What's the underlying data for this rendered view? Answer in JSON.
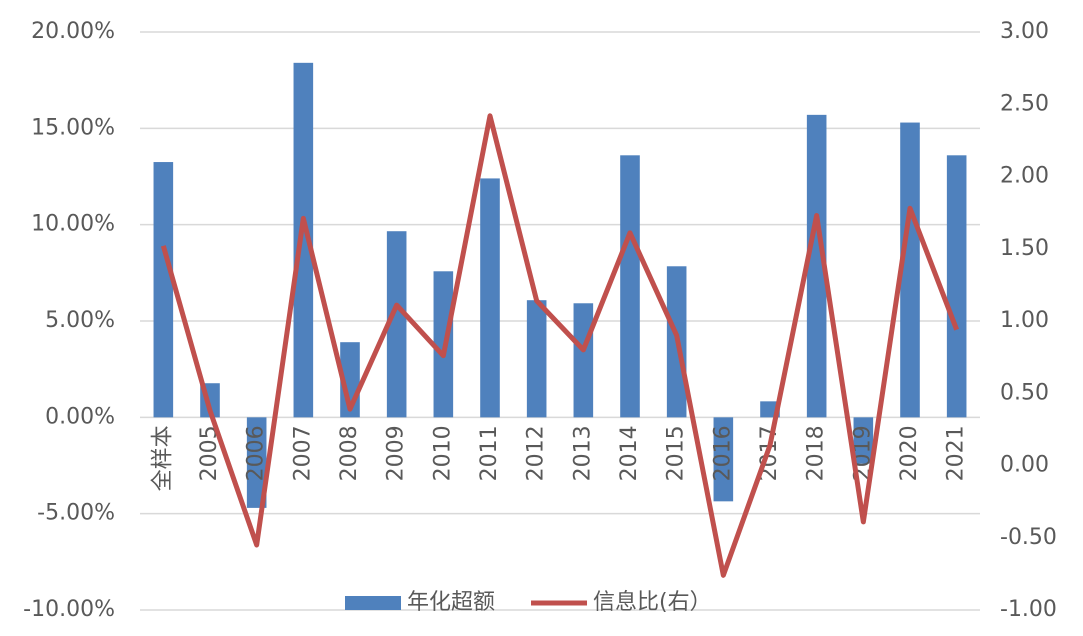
{
  "chart_data": {
    "type": "bar",
    "categories": [
      "全样本",
      "2005",
      "2006",
      "2007",
      "2008",
      "2009",
      "2010",
      "2011",
      "2012",
      "2013",
      "2014",
      "2015",
      "2016",
      "2017",
      "2018",
      "2019",
      "2020",
      "2021"
    ],
    "series": [
      {
        "name": "年化超额",
        "type": "bar",
        "color": "#4f81bd",
        "axis": "y",
        "values": [
          13.25,
          1.77,
          -4.7,
          18.4,
          3.9,
          9.66,
          7.58,
          12.4,
          6.08,
          5.92,
          13.6,
          7.84,
          -4.36,
          0.83,
          15.7,
          -2.4,
          15.3,
          13.6
        ]
      },
      {
        "name": "信息比(右）",
        "type": "line",
        "color": "#c0504d",
        "axis": "y2",
        "values": [
          1.52,
          0.38,
          -0.55,
          1.71,
          0.39,
          1.11,
          0.76,
          2.42,
          1.14,
          0.8,
          1.61,
          0.9,
          -0.76,
          0.14,
          1.73,
          -0.39,
          1.78,
          0.94
        ]
      }
    ],
    "ylim": [
      -10,
      20
    ],
    "yticks": [
      {
        "value": -10,
        "label": "-10.00%"
      },
      {
        "value": -5,
        "label": "-5.00%"
      },
      {
        "value": 0,
        "label": "0.00%"
      },
      {
        "value": 5,
        "label": "5.00%"
      },
      {
        "value": 10,
        "label": "10.00%"
      },
      {
        "value": 15,
        "label": "15.00%"
      },
      {
        "value": 20,
        "label": "20.00%"
      }
    ],
    "y2lim": [
      -1,
      3
    ],
    "y2ticks": [
      {
        "value": -1,
        "label": "-1.00"
      },
      {
        "value": -0.5,
        "label": "-0.50"
      },
      {
        "value": 0,
        "label": "0.00"
      },
      {
        "value": 0.5,
        "label": "0.50"
      },
      {
        "value": 1,
        "label": "1.00"
      },
      {
        "value": 1.5,
        "label": "1.50"
      },
      {
        "value": 2,
        "label": "2.00"
      },
      {
        "value": 2.5,
        "label": "2.50"
      },
      {
        "value": 3,
        "label": "3.00"
      }
    ],
    "grid": true,
    "legend": "bottom"
  }
}
